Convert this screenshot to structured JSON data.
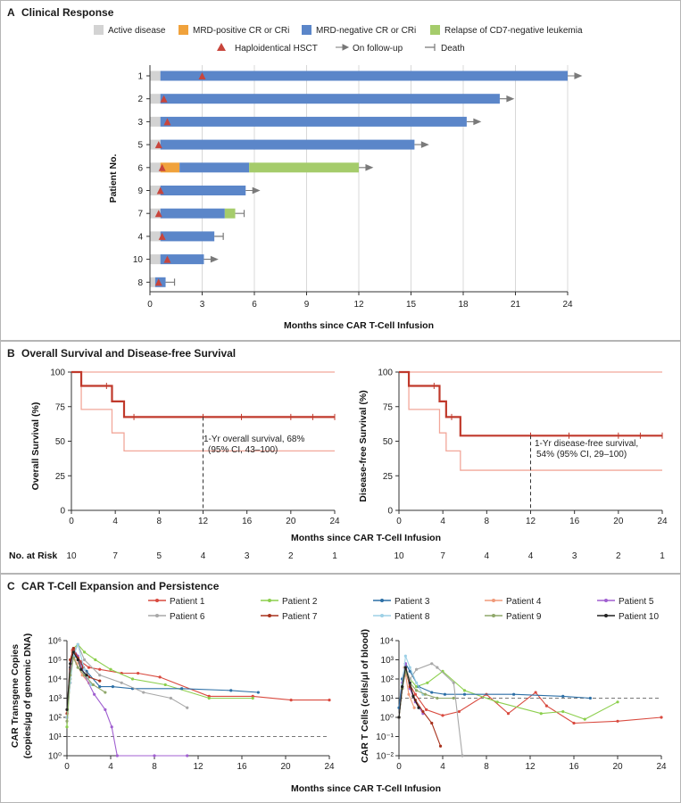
{
  "panelA": {
    "letter": "A",
    "title": "Clinical Response",
    "legend": [
      {
        "key": "active",
        "label": "Active disease",
        "color": "#d3d3d3"
      },
      {
        "key": "mrdpos",
        "label": "MRD-positive CR or CRi",
        "color": "#f0a23c"
      },
      {
        "key": "mrdneg",
        "label": "MRD-negative CR or CRi",
        "color": "#5b86c9"
      },
      {
        "key": "relapse",
        "label": "Relapse of CD7-negative leukemia",
        "color": "#a5cc6b"
      },
      {
        "key": "hsct",
        "label": "Haploidentical HSCT",
        "color": "#c8453c"
      },
      {
        "key": "followup",
        "label": "On follow-up",
        "color": "#777777"
      },
      {
        "key": "death",
        "label": "Death",
        "color": "#777777"
      }
    ],
    "ylabel": "Patient No.",
    "xlabel": "Months since CAR T-Cell Infusion",
    "xticks": [
      "0",
      "3",
      "6",
      "9",
      "12",
      "15",
      "18",
      "21",
      "24"
    ]
  },
  "panelB": {
    "letter": "B",
    "title": "Overall Survival and Disease-free Survival",
    "xlabel": "Months since CAR T-Cell Infusion",
    "yticks": [
      "0",
      "25",
      "50",
      "75",
      "100"
    ],
    "xticks": [
      "0",
      "4",
      "8",
      "12",
      "16",
      "20",
      "24"
    ],
    "left": {
      "ylabel": "Overall Survival (%)",
      "annot1": "1-Yr overall survival, 68%",
      "annot2": "(95% CI, 43–100)"
    },
    "right": {
      "ylabel": "Disease-free Survival (%)",
      "annot1": "1-Yr disease-free survival,",
      "annot2": "54% (95% CI, 29–100)"
    },
    "risk_label": "No. at Risk",
    "risk_left": [
      "10",
      "7",
      "5",
      "4",
      "3",
      "2",
      "1"
    ],
    "risk_right": [
      "10",
      "7",
      "4",
      "4",
      "3",
      "2",
      "1"
    ]
  },
  "panelC": {
    "letter": "C",
    "title": "CAR T-Cell Expansion and Persistence",
    "xlabel": "Months since CAR T-Cell Infusion",
    "xticks": [
      "0",
      "4",
      "8",
      "12",
      "16",
      "20",
      "24"
    ],
    "left": {
      "ylabel1": "CAR Transgene Copies",
      "ylabel2": "(copies/μg of genomic DNA)",
      "yticks": [
        "10⁰",
        "10¹",
        "10²",
        "10³",
        "10⁴",
        "10⁵",
        "10⁶"
      ]
    },
    "right": {
      "ylabel": "CAR T Cells (cells/μl of blood)",
      "yticks": [
        "10⁻²",
        "10⁻¹",
        "10⁰",
        "10¹",
        "10²",
        "10³",
        "10⁴"
      ]
    },
    "legend": [
      {
        "label": "Patient 1",
        "color": "#d94a3f"
      },
      {
        "label": "Patient 2",
        "color": "#8ccf4d"
      },
      {
        "label": "Patient 3",
        "color": "#2c6fa6"
      },
      {
        "label": "Patient 4",
        "color": "#f09a7a"
      },
      {
        "label": "Patient 5",
        "color": "#a05fd0"
      },
      {
        "label": "Patient 6",
        "color": "#a8a8a8"
      },
      {
        "label": "Patient 7",
        "color": "#a8321d"
      },
      {
        "label": "Patient 8",
        "color": "#9dd0e6"
      },
      {
        "label": "Patient 9",
        "color": "#8fa86a"
      },
      {
        "label": "Patient 10",
        "color": "#222222"
      }
    ]
  },
  "chart_data": [
    {
      "type": "bar",
      "title": "Clinical Response",
      "xlabel": "Months since CAR T-Cell Infusion",
      "ylabel": "Patient No.",
      "xlim": [
        0,
        24
      ],
      "categories": [
        "1",
        "2",
        "3",
        "5",
        "6",
        "9",
        "7",
        "4",
        "10",
        "8"
      ],
      "series": [
        {
          "name": "Active disease",
          "values": [
            0.6,
            0.6,
            0.6,
            0.6,
            0.6,
            0.6,
            0.6,
            0.6,
            0.6,
            0.3
          ]
        },
        {
          "name": "MRD-positive CR or CRi",
          "values": [
            0,
            0,
            0,
            0,
            1.1,
            0,
            0,
            0,
            0,
            0
          ]
        },
        {
          "name": "MRD-negative CR or CRi",
          "values": [
            23.4,
            19.5,
            17.6,
            14.6,
            4.0,
            4.9,
            3.7,
            3.1,
            2.5,
            0.6
          ]
        },
        {
          "name": "Relapse of CD7-negative leukemia",
          "values": [
            0,
            0,
            0,
            0,
            6.3,
            0,
            0.6,
            0,
            0,
            0
          ]
        }
      ],
      "hsct_month": [
        3.0,
        0.8,
        1.0,
        0.5,
        0.7,
        0.6,
        0.5,
        0.7,
        1.0,
        0.5
      ],
      "outcome": [
        "follow-up",
        "follow-up",
        "follow-up",
        "follow-up",
        "follow-up",
        "follow-up",
        "death",
        "death",
        "follow-up",
        "death"
      ]
    },
    {
      "type": "line",
      "title": "Overall Survival",
      "ylabel": "Overall Survival (%)",
      "xlabel": "Months since CAR T-Cell Infusion",
      "xlim": [
        0,
        24
      ],
      "ylim": [
        0,
        100
      ],
      "series": [
        {
          "name": "Overall survival",
          "x": [
            0,
            0.9,
            3.7,
            4.8,
            24
          ],
          "y": [
            100,
            90,
            78.8,
            67.5,
            67.5
          ]
        },
        {
          "name": "95% CI upper",
          "x": [
            0,
            24
          ],
          "y": [
            100,
            100
          ]
        },
        {
          "name": "95% CI lower",
          "x": [
            0,
            0.9,
            3.7,
            4.8,
            24
          ],
          "y": [
            100,
            73,
            56,
            43,
            43
          ]
        }
      ],
      "censored_x": [
        3.2,
        5.7,
        12,
        15.5,
        20,
        22,
        24
      ],
      "annotation": "1-Yr overall survival, 68% (95% CI, 43–100)"
    },
    {
      "type": "line",
      "title": "Disease-free Survival",
      "ylabel": "Disease-free Survival (%)",
      "xlabel": "Months since CAR T-Cell Infusion",
      "xlim": [
        0,
        24
      ],
      "ylim": [
        0,
        100
      ],
      "series": [
        {
          "name": "Disease-free survival",
          "x": [
            0,
            0.9,
            3.7,
            4.3,
            5.6,
            24
          ],
          "y": [
            100,
            90,
            78.8,
            67.5,
            54,
            54
          ]
        },
        {
          "name": "95% CI upper",
          "x": [
            0,
            24
          ],
          "y": [
            100,
            100
          ]
        },
        {
          "name": "95% CI lower",
          "x": [
            0,
            0.9,
            3.7,
            4.3,
            5.6,
            24
          ],
          "y": [
            100,
            73,
            56,
            43,
            29,
            29
          ]
        }
      ],
      "censored_x": [
        3.2,
        4.8,
        12,
        15.5,
        20,
        22,
        24
      ],
      "annotation": "1-Yr disease-free survival, 54% (95% CI, 29–100)"
    },
    {
      "type": "line",
      "title": "CAR Transgene Copies",
      "ylabel": "CAR Transgene Copies (copies/μg of genomic DNA)",
      "xlabel": "Months since CAR T-Cell Infusion",
      "xlim": [
        0,
        24
      ],
      "ylim_log10": [
        0,
        6
      ],
      "threshold_log10": 1,
      "series": [
        {
          "name": "Patient 1",
          "x": [
            0,
            0.3,
            0.5,
            0.9,
            1.3,
            2,
            3,
            5,
            6.5,
            8.5,
            13,
            17,
            20.5,
            24
          ],
          "y": [
            2,
            3.8,
            5.5,
            5.2,
            4.9,
            4.6,
            4.5,
            4.3,
            4.3,
            4.1,
            3.1,
            3.1,
            2.9,
            2.9
          ]
        },
        {
          "name": "Patient 2",
          "x": [
            0,
            0.3,
            0.6,
            1,
            1.6,
            2.6,
            4,
            6,
            9,
            13,
            17
          ],
          "y": [
            1.5,
            4,
            5.6,
            5.8,
            5.4,
            5,
            4.5,
            4,
            3.7,
            3,
            3
          ]
        },
        {
          "name": "Patient 3",
          "x": [
            0,
            0.3,
            0.6,
            1,
            1.8,
            3,
            4.2,
            6,
            10.5,
            15,
            17.5
          ],
          "y": [
            2,
            4.6,
            5.2,
            5.1,
            4.4,
            3.6,
            3.6,
            3.5,
            3.5,
            3.4,
            3.3
          ]
        },
        {
          "name": "Patient 4",
          "x": [
            0,
            0.3,
            0.5,
            0.9,
            1.4,
            2
          ],
          "y": [
            2,
            4.5,
            5.4,
            4.8,
            4.2,
            3.8
          ]
        },
        {
          "name": "Patient 5",
          "x": [
            0,
            0.3,
            0.6,
            1,
            1.6,
            2.5,
            3.5,
            4.1,
            4.6,
            8,
            11
          ],
          "y": [
            2,
            4.2,
            5.6,
            5.2,
            4.2,
            3.2,
            2.4,
            1.5,
            0,
            0,
            0
          ]
        },
        {
          "name": "Patient 6",
          "x": [
            0,
            0.3,
            0.6,
            1,
            1.6,
            3,
            5,
            7,
            9.5,
            11
          ],
          "y": [
            2,
            4,
            5.4,
            5.8,
            5,
            4.2,
            3.8,
            3.3,
            3,
            2.5
          ]
        },
        {
          "name": "Patient 7",
          "x": [
            0,
            0.3,
            0.6,
            1,
            1.5,
            2,
            3
          ],
          "y": [
            2.2,
            5,
            5.6,
            5.1,
            4.6,
            4.1,
            3.9
          ]
        },
        {
          "name": "Patient 8",
          "x": [
            0,
            0.3,
            0.6,
            1,
            1.6,
            2.2
          ],
          "y": [
            2,
            3.8,
            5.2,
            5.8,
            4.5,
            3.7
          ]
        },
        {
          "name": "Patient 9",
          "x": [
            0,
            0.3,
            0.6,
            1,
            1.6,
            2.4,
            3.5
          ],
          "y": [
            1.8,
            4.2,
            5.1,
            4.6,
            4.2,
            3.7,
            3.3
          ]
        },
        {
          "name": "Patient 10",
          "x": [
            0,
            0.3,
            0.6,
            1,
            1.3,
            1.8
          ],
          "y": [
            2.4,
            4.8,
            5.4,
            5,
            4.5,
            4.2
          ]
        }
      ]
    },
    {
      "type": "line",
      "title": "CAR T Cells",
      "ylabel": "CAR T Cells (cells/μl of blood)",
      "xlabel": "Months since CAR T-Cell Infusion",
      "xlim": [
        0,
        24
      ],
      "ylim_log10": [
        -2,
        4
      ],
      "threshold_log10": 1,
      "series": [
        {
          "name": "Patient 1",
          "x": [
            0,
            0.3,
            0.6,
            1,
            1.5,
            2.5,
            4,
            5.5,
            8,
            10,
            12.5,
            13.5,
            16,
            20,
            24
          ],
          "y": [
            0,
            1.6,
            2.4,
            1.7,
            1.2,
            0.4,
            0.1,
            0.3,
            1.2,
            0.2,
            1.3,
            0.6,
            -0.3,
            -0.2,
            0
          ]
        },
        {
          "name": "Patient 2",
          "x": [
            0,
            0.3,
            0.6,
            1,
            1.6,
            2.6,
            4,
            6,
            9,
            13,
            15,
            17,
            20
          ],
          "y": [
            0,
            1.6,
            2.6,
            2,
            1.6,
            1.8,
            2.4,
            1.4,
            0.8,
            0.2,
            0.3,
            -0.1,
            0.8
          ]
        },
        {
          "name": "Patient 3",
          "x": [
            0,
            0.3,
            0.6,
            1,
            1.8,
            3,
            4.2,
            6,
            10.5,
            15,
            17.5
          ],
          "y": [
            0.5,
            2,
            2.8,
            2.4,
            1.6,
            1.3,
            1.2,
            1.2,
            1.2,
            1.1,
            1
          ]
        },
        {
          "name": "Patient 4",
          "x": [
            0,
            0.3,
            0.5,
            0.9,
            1.4
          ],
          "y": [
            0,
            1.5,
            2.6,
            1.2,
            0.5
          ]
        },
        {
          "name": "Patient 5",
          "x": [
            0,
            0.3,
            0.6,
            1,
            1.5,
            2.2
          ],
          "y": [
            0,
            1.8,
            2.8,
            1.5,
            0.8,
            0.2
          ]
        },
        {
          "name": "Patient 6",
          "x": [
            0,
            0.3,
            0.6,
            1,
            1.6,
            3,
            3.5,
            5,
            5.8
          ],
          "y": [
            0,
            1.5,
            2.6,
            2,
            2.5,
            2.8,
            2.6,
            1.8,
            -2
          ]
        },
        {
          "name": "Patient 7",
          "x": [
            0,
            0.3,
            0.6,
            1,
            1.5,
            2.2,
            3,
            3.8
          ],
          "y": [
            0,
            1.5,
            2.5,
            1.6,
            0.9,
            0.3,
            -0.3,
            -1.5
          ]
        },
        {
          "name": "Patient 8",
          "x": [
            0,
            0.3,
            0.6,
            1,
            1.6,
            2.2
          ],
          "y": [
            0,
            1.7,
            3.2,
            2.6,
            1.8,
            1.2
          ]
        },
        {
          "name": "Patient 9",
          "x": [
            0,
            0.3,
            0.6,
            1,
            1.6,
            2.4,
            3.5,
            5
          ],
          "y": [
            0,
            1.5,
            2.4,
            1.8,
            1.4,
            1.2,
            1,
            1
          ]
        },
        {
          "name": "Patient 10",
          "x": [
            0,
            0.3,
            0.6,
            1,
            1.3,
            1.8
          ],
          "y": [
            0,
            1.6,
            2.6,
            1.8,
            1.1,
            0.5
          ]
        }
      ]
    }
  ]
}
